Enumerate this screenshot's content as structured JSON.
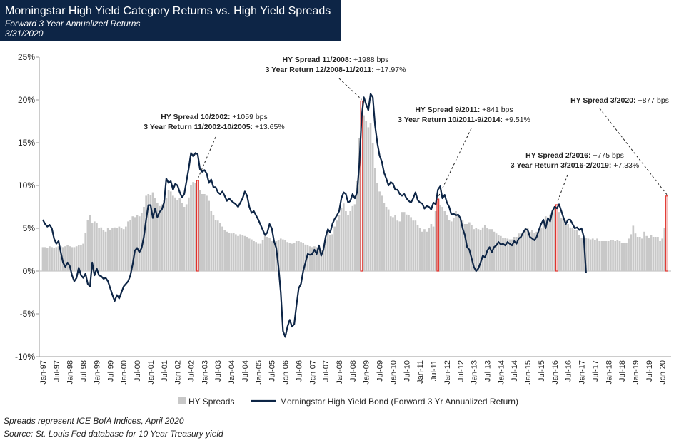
{
  "chart_data": {
    "type": "combo",
    "title": "Morningstar High Yield Category Returns vs. High Yield Spreads",
    "subtitle": "Forward 3 Year Annualized Returns",
    "date": "3/31/2020",
    "categories": [
      "Jan-97",
      null,
      null,
      null,
      null,
      null,
      "Jul-97",
      null,
      null,
      null,
      null,
      null,
      "Jan-98",
      null,
      null,
      null,
      null,
      null,
      "Jul-98",
      null,
      null,
      null,
      null,
      null,
      "Jan-99",
      null,
      null,
      null,
      null,
      null,
      "Jul-99",
      null,
      null,
      null,
      null,
      null,
      "Jan-00",
      null,
      null,
      null,
      null,
      null,
      "Jul-00",
      null,
      null,
      null,
      null,
      null,
      "Jan-01",
      null,
      null,
      null,
      null,
      null,
      "Jul-01",
      null,
      null,
      null,
      null,
      null,
      "Jan-02",
      null,
      null,
      null,
      null,
      null,
      "Jul-02",
      null,
      null,
      null,
      null,
      null,
      "Jan-03",
      null,
      null,
      null,
      null,
      null,
      "Jul-03",
      null,
      null,
      null,
      null,
      null,
      "Jan-04",
      null,
      null,
      null,
      null,
      null,
      "Jul-04",
      null,
      null,
      null,
      null,
      null,
      "Jan-05",
      null,
      null,
      null,
      null,
      null,
      "Jul-05",
      null,
      null,
      null,
      null,
      null,
      "Jan-06",
      null,
      null,
      null,
      null,
      null,
      "Jul-06",
      null,
      null,
      null,
      null,
      null,
      "Jan-07",
      null,
      null,
      null,
      null,
      null,
      "Jul-07",
      null,
      null,
      null,
      null,
      null,
      "Jan-08",
      null,
      null,
      null,
      null,
      null,
      "Jul-08",
      null,
      null,
      null,
      null,
      null,
      "Jan-09",
      null,
      null,
      null,
      null,
      null,
      "Jul-09",
      null,
      null,
      null,
      null,
      null,
      "Jan-10",
      null,
      null,
      null,
      null,
      null,
      "Jul-10",
      null,
      null,
      null,
      null,
      null,
      "Jan-11",
      null,
      null,
      null,
      null,
      null,
      "Jul-11",
      null,
      null,
      null,
      null,
      null,
      "Jan-12",
      null,
      null,
      null,
      null,
      null,
      "Jul-12",
      null,
      null,
      null,
      null,
      null,
      "Jan-13",
      null,
      null,
      null,
      null,
      null,
      "Jul-13",
      null,
      null,
      null,
      null,
      null,
      "Jan-14",
      null,
      null,
      null,
      null,
      null,
      "Jul-14",
      null,
      null,
      null,
      null,
      null,
      "Jan-15",
      null,
      null,
      null,
      null,
      null,
      "Jul-15",
      null,
      null,
      null,
      null,
      null,
      "Jan-16",
      null,
      null,
      null,
      null,
      null,
      "Jul-16",
      null,
      null,
      null,
      null,
      null,
      "Jan-17",
      null,
      null,
      null,
      null,
      null,
      "Jul-17",
      null,
      null,
      null,
      null,
      null,
      "Jan-18",
      null,
      null,
      null,
      null,
      null,
      "Jul-18",
      null,
      null,
      null,
      null,
      null,
      "Jan-19",
      null,
      null,
      null,
      null,
      null,
      "Jul-19",
      null,
      null,
      null,
      null,
      null,
      "Jan-20",
      null,
      null
    ],
    "series": [
      {
        "name": "HY Spreads",
        "type": "bar",
        "color": "#c8c8c8",
        "highlight_color": "#e0312b",
        "highlight": [
          69,
          142,
          176,
          229,
          278
        ],
        "values": [
          2.8,
          2.8,
          2.7,
          2.9,
          2.8,
          2.7,
          2.8,
          2.9,
          2.9,
          2.8,
          2.9,
          3.0,
          2.9,
          2.8,
          2.8,
          2.9,
          3.0,
          3.0,
          3.2,
          4.5,
          6.0,
          6.5,
          5.6,
          5.8,
          5.6,
          5.0,
          5.1,
          4.8,
          4.6,
          5.0,
          4.8,
          5.0,
          5.1,
          5.0,
          5.2,
          5.0,
          4.9,
          5.2,
          5.8,
          6.0,
          6.4,
          6.3,
          6.5,
          6.4,
          6.8,
          7.5,
          8.8,
          9.0,
          8.9,
          9.2,
          8.5,
          8.0,
          7.6,
          7.8,
          8.3,
          8.5,
          9.5,
          9.3,
          8.8,
          8.6,
          8.3,
          8.5,
          8.0,
          7.5,
          7.8,
          8.6,
          10.0,
          10.4,
          10.3,
          10.59,
          9.5,
          9.0,
          9.0,
          8.8,
          8.2,
          7.0,
          6.5,
          6.0,
          5.9,
          5.6,
          5.2,
          4.8,
          4.6,
          4.5,
          4.4,
          4.5,
          4.3,
          4.1,
          4.3,
          4.2,
          4.1,
          4.0,
          3.8,
          3.7,
          3.5,
          3.4,
          3.2,
          3.2,
          3.6,
          4.1,
          4.0,
          3.9,
          3.5,
          3.5,
          3.5,
          3.6,
          3.8,
          3.7,
          3.6,
          3.4,
          3.3,
          3.2,
          3.3,
          3.5,
          3.5,
          3.4,
          3.3,
          3.1,
          3.0,
          2.9,
          2.8,
          2.9,
          2.8,
          2.6,
          2.5,
          2.9,
          3.8,
          4.4,
          4.2,
          4.3,
          5.2,
          5.9,
          6.5,
          7.4,
          7.9,
          7.0,
          6.5,
          7.0,
          7.6,
          7.8,
          10.5,
          15.5,
          19.88,
          18.2,
          17.5,
          16.8,
          17.3,
          15.0,
          12.0,
          10.3,
          9.3,
          8.8,
          8.0,
          7.5,
          7.2,
          6.4,
          6.3,
          6.5,
          5.9,
          5.8,
          6.9,
          6.9,
          6.6,
          6.5,
          6.3,
          5.9,
          5.9,
          5.4,
          5.0,
          4.6,
          4.9,
          4.6,
          5.0,
          5.5,
          5.2,
          7.0,
          8.41,
          7.7,
          7.5,
          7.0,
          6.5,
          6.0,
          5.8,
          6.2,
          7.0,
          6.5,
          6.2,
          5.9,
          5.5,
          5.5,
          5.7,
          5.4,
          4.9,
          5.0,
          4.9,
          4.8,
          5.1,
          5.4,
          5.0,
          4.9,
          4.9,
          4.6,
          4.4,
          4.2,
          4.1,
          3.9,
          3.9,
          3.8,
          3.7,
          3.7,
          4.0,
          4.0,
          4.4,
          4.5,
          4.6,
          5.0,
          5.0,
          4.6,
          4.8,
          4.5,
          4.6,
          4.9,
          5.0,
          5.6,
          6.4,
          6.2,
          6.6,
          6.9,
          7.4,
          7.75,
          6.9,
          6.2,
          6.0,
          6.0,
          5.5,
          5.1,
          5.0,
          4.8,
          4.8,
          4.2,
          3.9,
          3.7,
          3.9,
          3.8,
          3.7,
          3.8,
          3.6,
          3.8,
          3.5,
          3.5,
          3.5,
          3.5,
          3.5,
          3.6,
          3.6,
          3.5,
          3.6,
          3.5,
          3.3,
          3.3,
          3.3,
          3.8,
          4.3,
          5.3,
          4.4,
          4.0,
          4.0,
          3.8,
          4.6,
          4.1,
          3.9,
          4.2,
          4.0,
          4.0,
          4.0,
          3.5,
          3.8,
          5.0,
          8.77
        ]
      },
      {
        "name": "Morningstar High Yield Bond (Forward 3 Yr Annualized Return)",
        "type": "line",
        "color": "#0d2546",
        "values": [
          6.0,
          5.5,
          5.2,
          5.4,
          5.0,
          3.8,
          3.2,
          3.5,
          2.2,
          1.0,
          0.5,
          1.0,
          0.6,
          -0.5,
          -1.2,
          -0.8,
          0.4,
          -0.5,
          -0.8,
          -0.3,
          -1.5,
          -1.8,
          1.0,
          -0.5,
          0.3,
          -0.5,
          -0.6,
          -0.9,
          -0.8,
          -1.2,
          -2.0,
          -2.8,
          -3.5,
          -2.8,
          -3.2,
          -2.5,
          -1.8,
          -1.5,
          -1.2,
          -0.5,
          0.8,
          2.4,
          2.7,
          2.2,
          2.7,
          4.0,
          6.0,
          7.7,
          7.7,
          6.2,
          7.3,
          6.3,
          6.9,
          7.2,
          8.0,
          10.8,
          10.3,
          10.5,
          9.5,
          10.2,
          10.0,
          9.2,
          8.6,
          9.0,
          10.5,
          12.0,
          13.8,
          13.4,
          13.8,
          13.65,
          11.9,
          11.6,
          11.8,
          11.4,
          10.3,
          10.7,
          9.8,
          9.8,
          9.2,
          9.0,
          9.3,
          8.8,
          8.2,
          8.5,
          8.2,
          8.0,
          7.8,
          7.5,
          8.0,
          8.5,
          9.3,
          8.8,
          7.5,
          6.8,
          7.0,
          6.5,
          6.0,
          5.4,
          4.8,
          4.2,
          4.5,
          5.5,
          5.0,
          3.5,
          2.7,
          0.5,
          -2.5,
          -7.0,
          -7.7,
          -6.5,
          -5.7,
          -6.5,
          -6.2,
          -4.0,
          -2.0,
          -1.5,
          0.0,
          1.0,
          2.0,
          1.9,
          2.0,
          2.5,
          2.0,
          3.0,
          1.8,
          2.5,
          4.0,
          4.9,
          4.5,
          5.5,
          6.1,
          6.5,
          7.0,
          8.5,
          9.2,
          9.0,
          8.0,
          8.2,
          9.0,
          8.5,
          9.2,
          12.5,
          17.97,
          20.3,
          19.5,
          18.8,
          20.7,
          20.3,
          17.0,
          15.0,
          13.5,
          12.8,
          11.5,
          10.8,
          10.0,
          10.4,
          10.2,
          9.5,
          9.5,
          9.0,
          8.8,
          9.0,
          8.5,
          8.2,
          8.0,
          8.5,
          9.2,
          8.3,
          8.0,
          7.9,
          7.3,
          7.6,
          7.5,
          7.2,
          8.0,
          7.8,
          9.51,
          9.9,
          8.5,
          8.9,
          8.0,
          7.5,
          6.6,
          6.7,
          6.5,
          6.6,
          6.2,
          5.0,
          4.2,
          2.8,
          2.5,
          1.5,
          0.5,
          0.0,
          0.3,
          1.0,
          1.8,
          1.6,
          2.4,
          2.8,
          2.2,
          2.8,
          3.0,
          3.4,
          3.1,
          3.2,
          3.0,
          3.4,
          3.2,
          3.0,
          3.5,
          3.2,
          3.8,
          4.0,
          4.5,
          4.9,
          4.8,
          4.0,
          3.8,
          3.6,
          4.0,
          4.8,
          5.5,
          6.0,
          5.0,
          6.2,
          5.8,
          7.0,
          7.5,
          7.33,
          7.8,
          7.0,
          6.2,
          5.5,
          6.0,
          6.0,
          5.5,
          5.0,
          5.1,
          4.8,
          5.0,
          4.0,
          -0.2,
          null,
          null,
          null,
          null,
          null,
          null,
          null,
          null,
          null,
          null,
          null,
          null,
          null,
          null,
          null,
          null,
          null,
          null,
          null,
          null,
          null,
          null,
          null,
          null,
          null,
          null,
          null,
          null,
          null,
          null,
          null,
          null,
          null,
          null,
          null,
          null
        ]
      }
    ],
    "ylim": [
      -10,
      25
    ],
    "yticks": [
      {
        "value": -10,
        "label": "-10%"
      },
      {
        "value": -5,
        "label": "-5%"
      },
      {
        "value": 0,
        "label": "0%"
      },
      {
        "value": 5,
        "label": "5%"
      },
      {
        "value": 10,
        "label": "10%"
      },
      {
        "value": 15,
        "label": "15%"
      },
      {
        "value": 20,
        "label": "20%"
      },
      {
        "value": 25,
        "label": "25%"
      }
    ],
    "legend": "bottom",
    "annotations": [
      {
        "index": 69,
        "lines": [
          {
            "label": "HY Spread 10/2002:",
            "value": "+1059 bps"
          },
          {
            "label": "3 Year Return 11/2002-10/2005:",
            "value": "+13.65%"
          }
        ]
      },
      {
        "index": 142,
        "lines": [
          {
            "label": "HY Spread 11/2008:",
            "value": "+1988 bps"
          },
          {
            "label": "3 Year Return 12/2008-11/2011:",
            "value": "+17.97%"
          }
        ]
      },
      {
        "index": 176,
        "lines": [
          {
            "label": "HY Spread 9/2011:",
            "value": "+841 bps"
          },
          {
            "label": "3 Year Return 10/2011-9/2014:",
            "value": "+9.51%"
          }
        ]
      },
      {
        "index": 229,
        "lines": [
          {
            "label": "HY Spread 2/2016:",
            "value": "+775 bps"
          },
          {
            "label": "3 Year Return 3/2016-2/2019:",
            "value": "+7.33%"
          }
        ]
      },
      {
        "index": 278,
        "lines": [
          {
            "label": "HY Spread 3/2020:",
            "value": "+877 bps"
          }
        ]
      }
    ],
    "notes": [
      "Spreads represent ICE BofA Indices, April 2020",
      "Source: St. Louis Fed database for 10 Year Treasury yield"
    ]
  }
}
